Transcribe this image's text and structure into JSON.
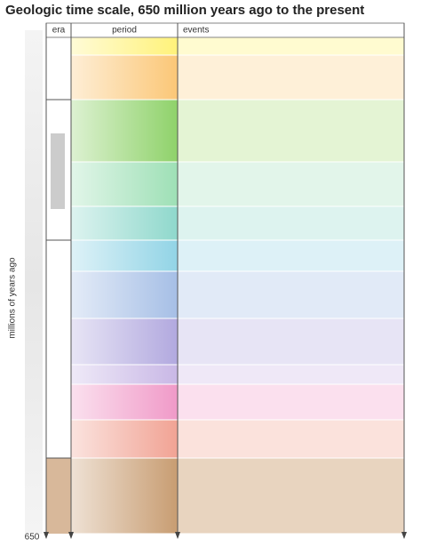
{
  "title": "Geologic time scale, 650 million years ago to the present",
  "columns": [
    "era",
    "period",
    "events"
  ],
  "axis_label": "millions of years ago",
  "axis_end": "650"
}
